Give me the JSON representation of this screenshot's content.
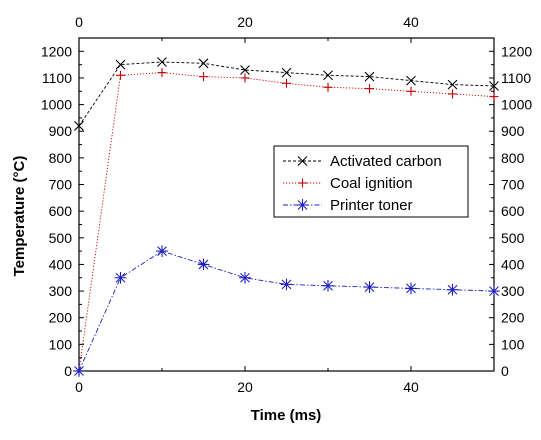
{
  "chart_data": {
    "type": "line",
    "title": "",
    "xlabel": "Time (ms)",
    "ylabel": "Temperature (°C)",
    "xlim": [
      0,
      50
    ],
    "ylim": [
      0,
      1250
    ],
    "x_ticks": [
      0,
      20,
      40
    ],
    "y_ticks": [
      0,
      100,
      200,
      300,
      400,
      500,
      600,
      700,
      800,
      900,
      1000,
      1100,
      1200
    ],
    "grid": false,
    "legend_position": "middle-right",
    "series": [
      {
        "name": "Activated carbon",
        "color": "#000000",
        "marker": "x",
        "line_style": "dashed",
        "x": [
          0,
          5,
          10,
          15,
          20,
          25,
          30,
          35,
          40,
          45,
          50
        ],
        "y": [
          920,
          1150,
          1160,
          1155,
          1130,
          1120,
          1110,
          1105,
          1090,
          1075,
          1070
        ]
      },
      {
        "name": "Coal ignition",
        "color": "#c00000",
        "marker": "+",
        "line_style": "dotted",
        "x": [
          0,
          5,
          10,
          15,
          20,
          25,
          30,
          35,
          40,
          45,
          50
        ],
        "y": [
          0,
          1110,
          1120,
          1105,
          1100,
          1080,
          1065,
          1060,
          1050,
          1040,
          1030
        ]
      },
      {
        "name": "Printer toner",
        "color": "#1f1fbf",
        "marker": "asterisk",
        "line_style": "dash-dot",
        "x": [
          0,
          5,
          10,
          15,
          20,
          25,
          30,
          35,
          40,
          45,
          50
        ],
        "y": [
          0,
          350,
          450,
          400,
          350,
          325,
          320,
          315,
          310,
          305,
          300
        ]
      }
    ]
  }
}
